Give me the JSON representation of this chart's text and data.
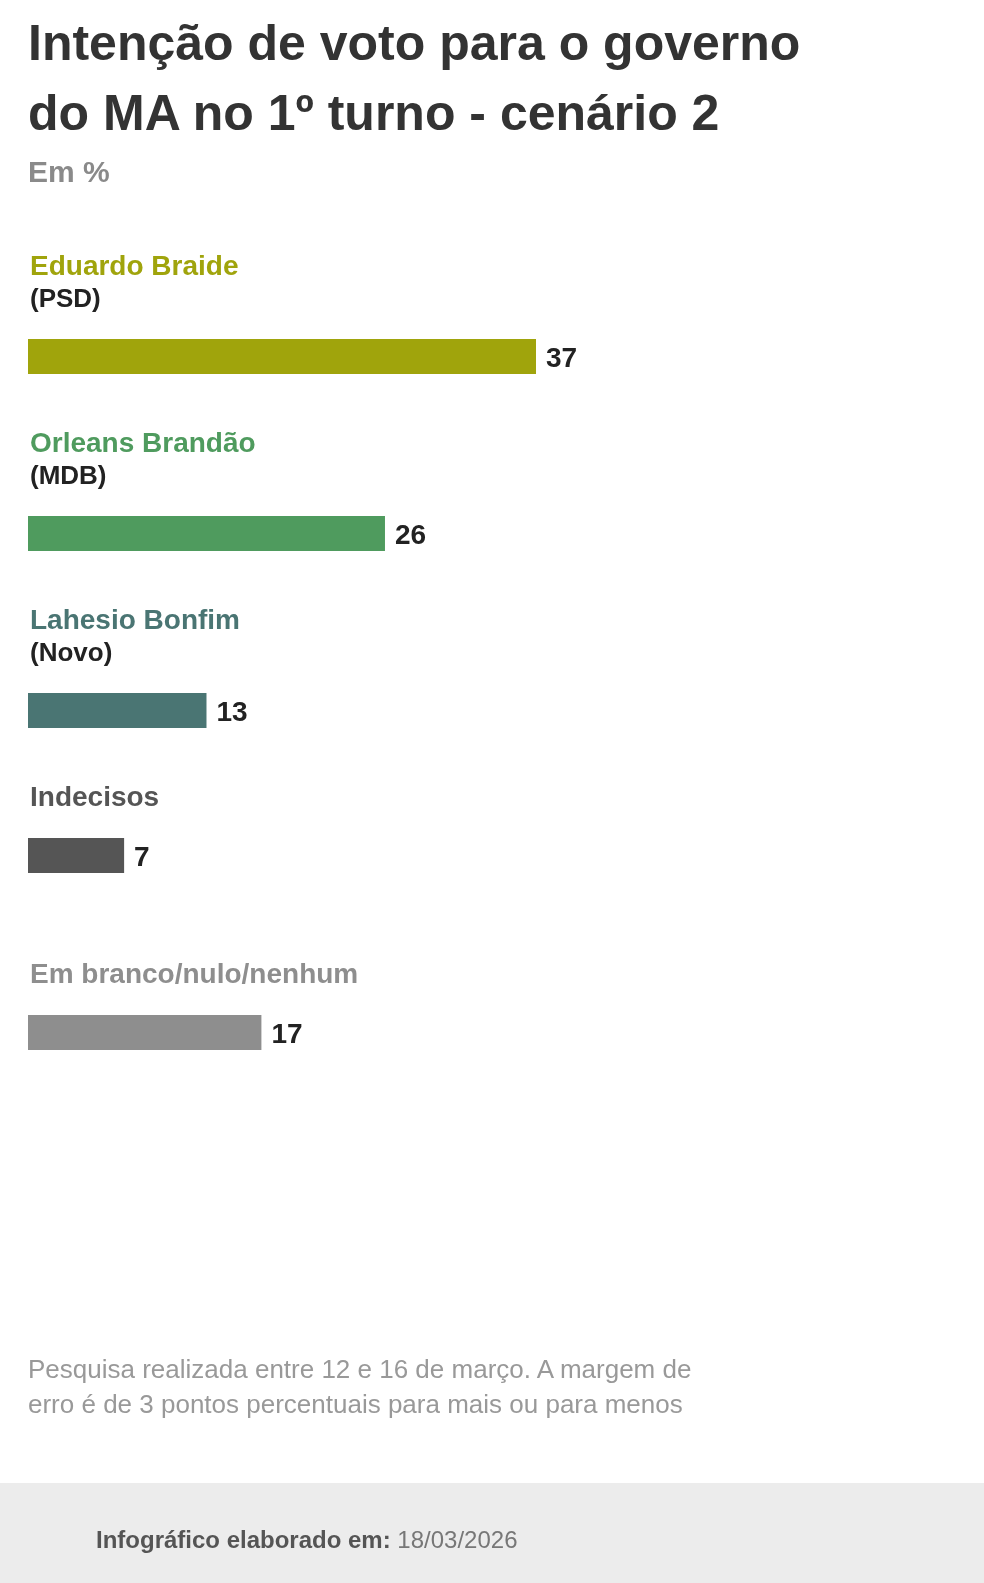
{
  "chart_data": {
    "type": "bar",
    "orientation": "horizontal",
    "relative": false,
    "title": "Intenção de voto para o governo do MA no 1º turno - cenário 2",
    "subtitle": "Em %",
    "categories": [
      "Eduardo Braide\n(PSD)",
      "Orleans Brandão\n(MDB)",
      "Lahesio Bonfim\n(Novo)",
      "Indecisos",
      "Em branco/nulo/nenhum"
    ],
    "values": [
      37,
      26,
      13,
      7,
      17
    ],
    "colors": [
      "#a0a40c",
      "#4f9b5e",
      "#4a7573",
      "#555555",
      "#8e8e8e"
    ],
    "data_labels": true,
    "annotations": [
      "Pesquisa realizada entre 12 e 16 de março. A margem de erro é de 3 pontos percentuais para mais ou para menos",
      "Infográfico elaborado em: 18/03/2026"
    ]
  }
}
